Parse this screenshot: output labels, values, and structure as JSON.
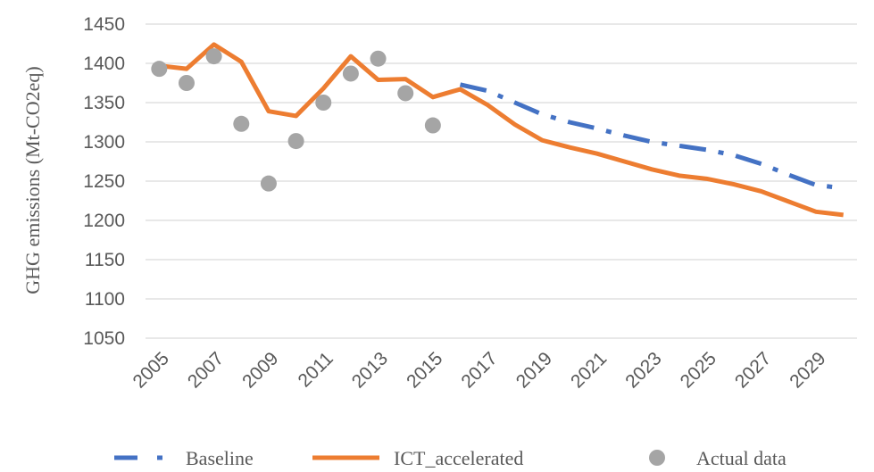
{
  "chart_data": {
    "type": "line",
    "title": "",
    "xlabel": "",
    "ylabel": "GHG emissions (Mt-CO2eq)",
    "ylim": [
      1050,
      1450
    ],
    "yticks": [
      1050,
      1100,
      1150,
      1200,
      1250,
      1300,
      1350,
      1400,
      1450
    ],
    "x": [
      2005,
      2006,
      2007,
      2008,
      2009,
      2010,
      2011,
      2012,
      2013,
      2014,
      2015,
      2016,
      2017,
      2018,
      2019,
      2020,
      2021,
      2022,
      2023,
      2024,
      2025,
      2026,
      2027,
      2028,
      2029,
      2030
    ],
    "xticks": [
      2005,
      2007,
      2009,
      2011,
      2013,
      2015,
      2017,
      2019,
      2021,
      2023,
      2025,
      2027,
      2029
    ],
    "grid": "horizontal",
    "legend_position": "bottom",
    "series": [
      {
        "name": "Baseline",
        "style": "dash-dot",
        "color": "#4472c4",
        "x": [
          2016,
          2017,
          2018,
          2019,
          2020,
          2021,
          2022,
          2023,
          2024,
          2025,
          2026,
          2027,
          2028,
          2029,
          2030
        ],
        "values": [
          1373,
          1365,
          1350,
          1335,
          1325,
          1317,
          1308,
          1300,
          1295,
          1290,
          1283,
          1272,
          1258,
          1245,
          1241
        ]
      },
      {
        "name": "ICT_accelerated",
        "style": "solid",
        "color": "#ed7d31",
        "x": [
          2005,
          2006,
          2007,
          2008,
          2009,
          2010,
          2011,
          2012,
          2013,
          2014,
          2015,
          2016,
          2017,
          2018,
          2019,
          2020,
          2021,
          2022,
          2023,
          2024,
          2025,
          2026,
          2027,
          2028,
          2029,
          2030
        ],
        "values": [
          1397,
          1393,
          1424,
          1402,
          1339,
          1333,
          1368,
          1409,
          1379,
          1380,
          1357,
          1367,
          1347,
          1322,
          1302,
          1293,
          1285,
          1275,
          1265,
          1257,
          1253,
          1246,
          1237,
          1224,
          1211,
          1207
        ]
      },
      {
        "name": "Actual data",
        "style": "marker",
        "color": "#a5a5a5",
        "x": [
          2005,
          2006,
          2007,
          2008,
          2009,
          2010,
          2011,
          2012,
          2013,
          2014,
          2015
        ],
        "values": [
          1393,
          1375,
          1409,
          1323,
          1247,
          1301,
          1350,
          1387,
          1406,
          1362,
          1321
        ]
      }
    ]
  }
}
